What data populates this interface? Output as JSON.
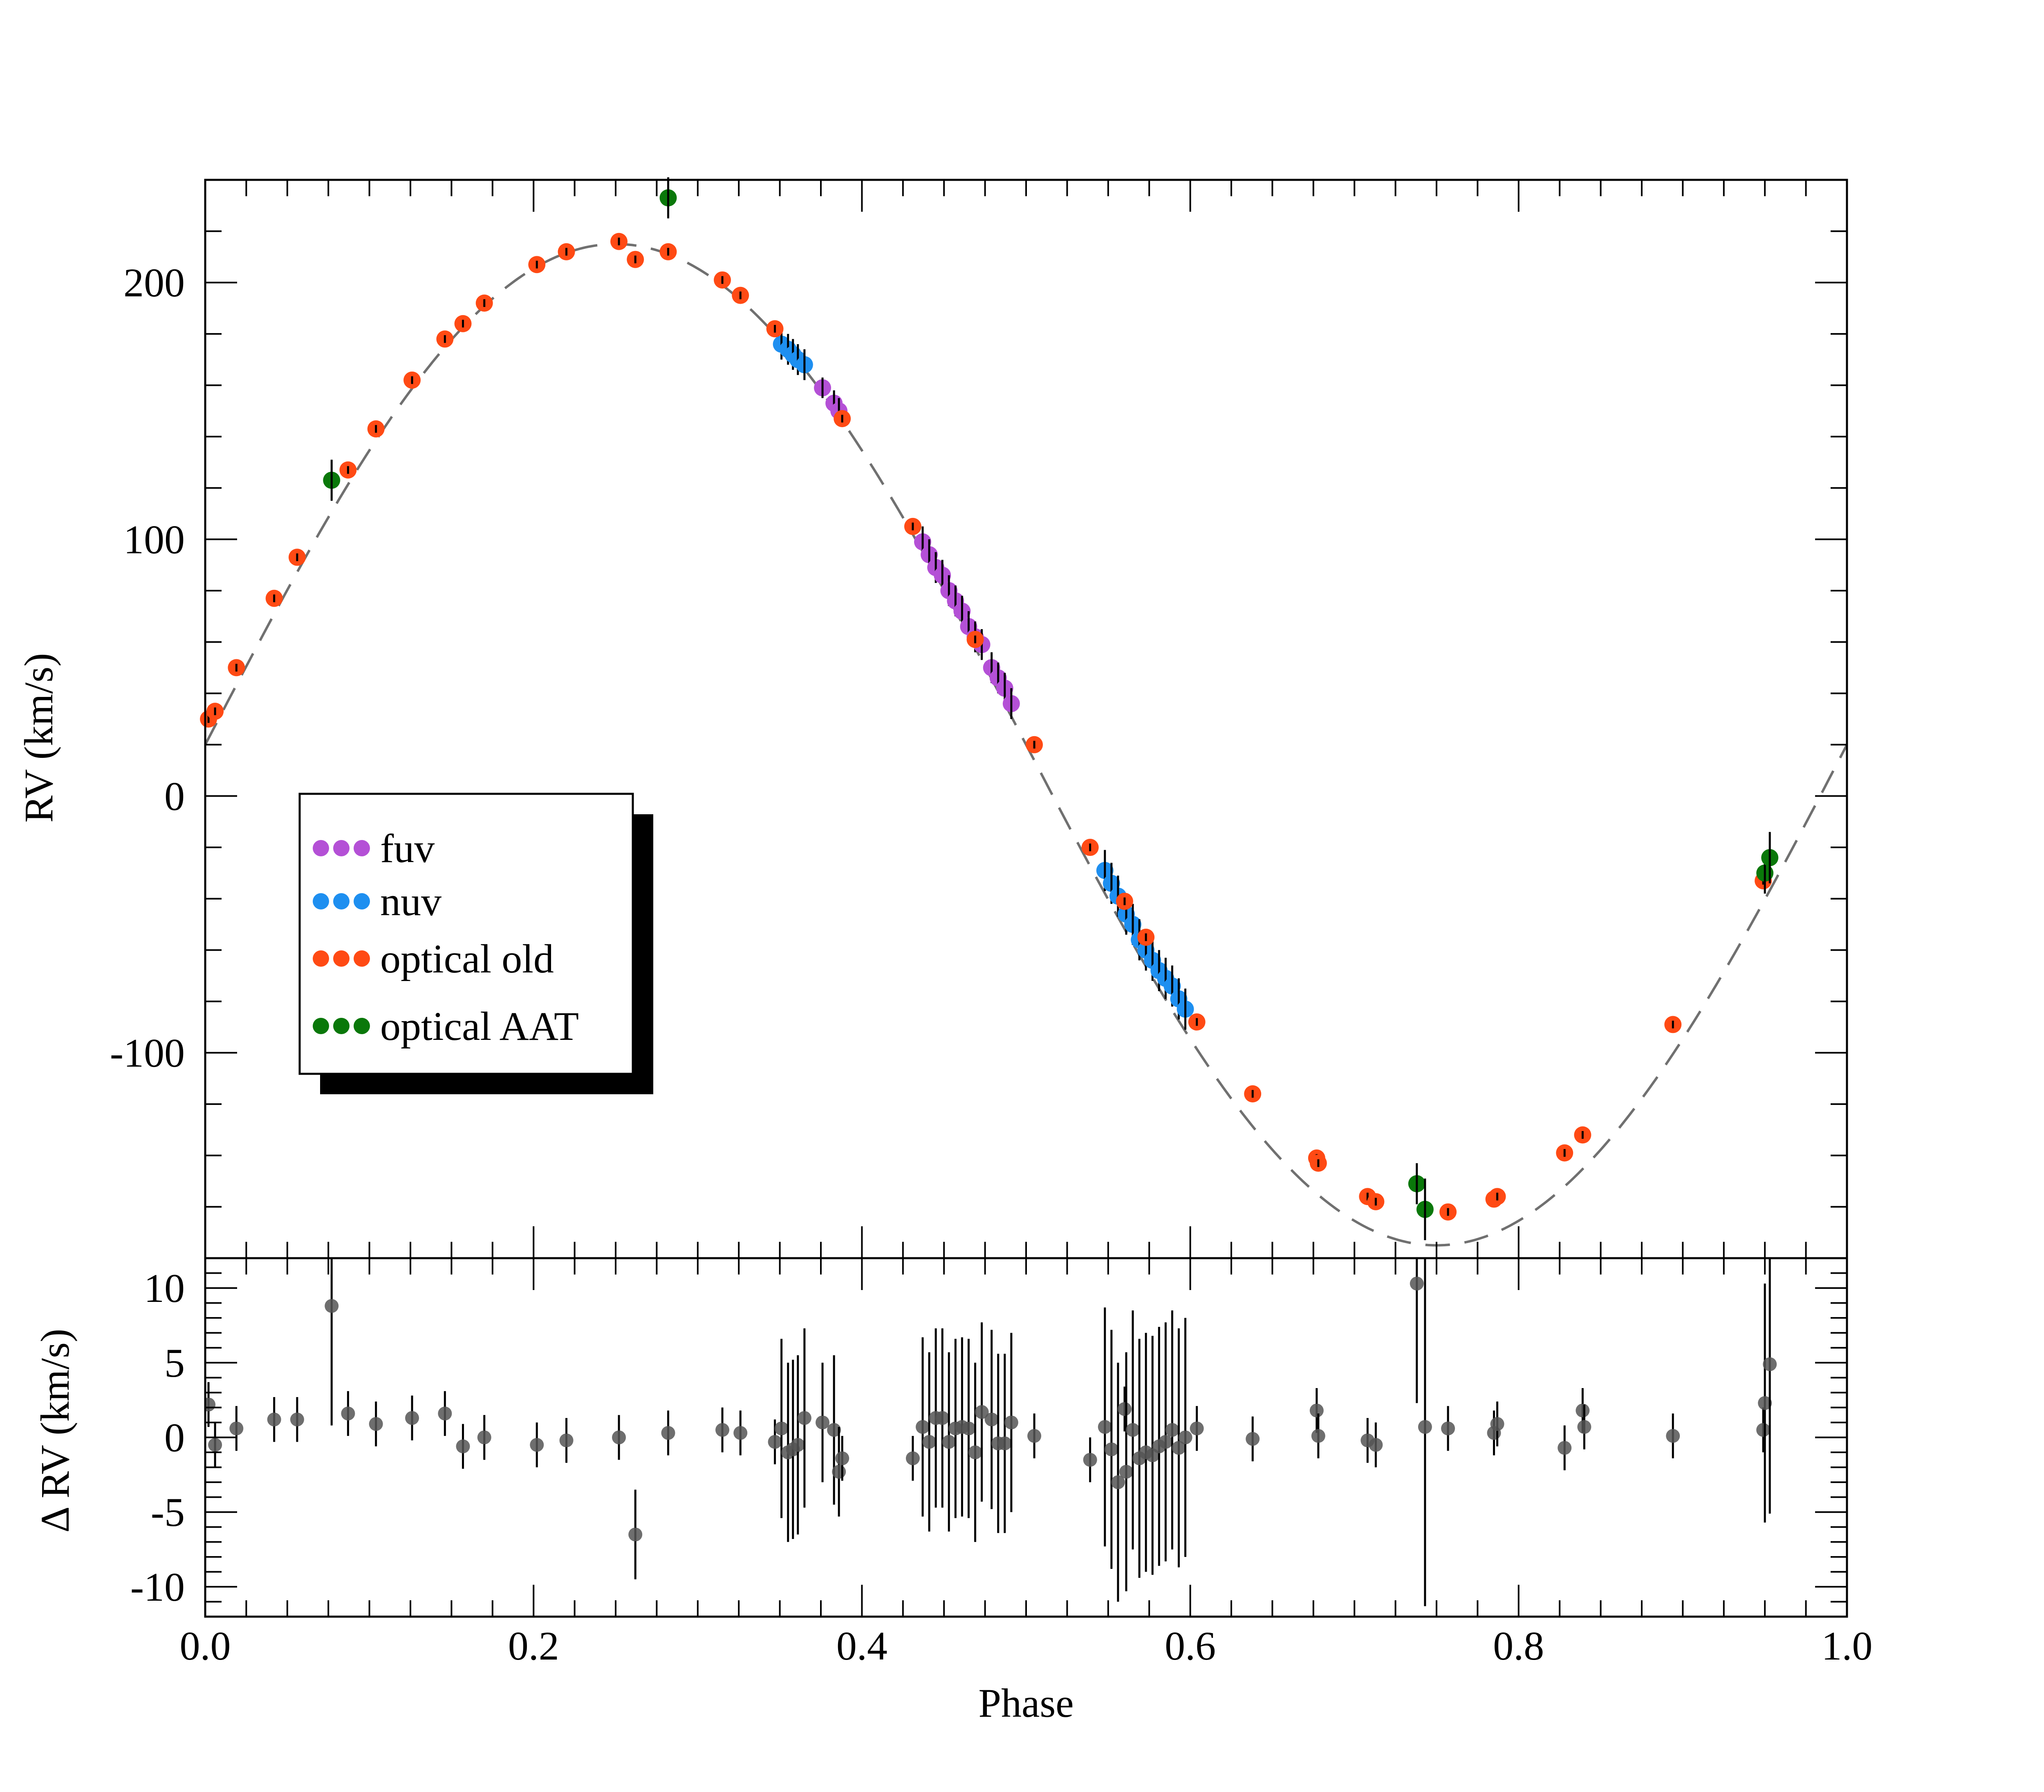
{
  "chart_data": [
    {
      "type": "scatter",
      "title": "",
      "xlabel": "",
      "ylabel": "RV (km/s)",
      "xlim": [
        0.0,
        1.0
      ],
      "ylim": [
        -180,
        240
      ],
      "y_ticks": [
        -100,
        0,
        100,
        200
      ],
      "y_tick_labels": [
        "-100",
        "0",
        "100",
        "200"
      ],
      "grid": false,
      "model": {
        "name": "sine fit",
        "style": "dashed",
        "color": "#707070",
        "gamma": 20,
        "amplitude": 195,
        "phase_of_max": 0.25
      },
      "legend": {
        "placement": "middle-left",
        "entries": [
          {
            "label": "fuv",
            "color": "#b450d6"
          },
          {
            "label": "nuv",
            "color": "#1e8ff0"
          },
          {
            "label": "optical old",
            "color": "#ff4a14"
          },
          {
            "label": "optical AAT",
            "color": "#0a780a"
          }
        ]
      },
      "series": [
        {
          "name": "fuv",
          "color": "#b450d6",
          "x": [
            0.376,
            0.383,
            0.386,
            0.437,
            0.441,
            0.445,
            0.449,
            0.453,
            0.457,
            0.461,
            0.465,
            0.469,
            0.473,
            0.479,
            0.483,
            0.487,
            0.491
          ],
          "y": [
            159,
            153,
            150,
            99,
            94,
            89,
            86,
            80,
            76,
            72,
            66,
            62,
            59,
            50,
            46,
            42,
            36
          ],
          "err": [
            4,
            5,
            5,
            6,
            6,
            6,
            6,
            6,
            6,
            6,
            6,
            6,
            6,
            6,
            6,
            6,
            6
          ]
        },
        {
          "name": "nuv",
          "color": "#1e8ff0",
          "x": [
            0.351,
            0.355,
            0.358,
            0.361,
            0.365,
            0.548,
            0.552,
            0.556,
            0.561,
            0.565,
            0.569,
            0.573,
            0.577,
            0.581,
            0.585,
            0.589,
            0.593,
            0.597
          ],
          "y": [
            176,
            174,
            172,
            170,
            168,
            -29,
            -34,
            -39,
            -46,
            -50,
            -56,
            -60,
            -64,
            -68,
            -71,
            -74,
            -79,
            -83
          ],
          "err": [
            6,
            6,
            6,
            6,
            6,
            8,
            8,
            8,
            8,
            8,
            8,
            8,
            8,
            8,
            8,
            8,
            8,
            8
          ]
        },
        {
          "name": "optical old",
          "color": "#ff4a14",
          "x": [
            0.002,
            0.006,
            0.019,
            0.042,
            0.056,
            0.087,
            0.104,
            0.126,
            0.146,
            0.157,
            0.17,
            0.202,
            0.22,
            0.252,
            0.262,
            0.282,
            0.315,
            0.326,
            0.347,
            0.388,
            0.431,
            0.469,
            0.505,
            0.539,
            0.56,
            0.573,
            0.604,
            0.638,
            0.677,
            0.678,
            0.708,
            0.713,
            0.757,
            0.785,
            0.787,
            0.828,
            0.839,
            0.894,
            0.949
          ],
          "y": [
            30,
            33,
            50,
            77,
            93,
            127,
            143,
            162,
            178,
            184,
            192,
            207,
            212,
            216,
            209,
            212,
            201,
            195,
            182,
            147,
            105,
            61,
            20,
            -20,
            -41,
            -55,
            -88,
            -116,
            -141,
            -143,
            -156,
            -158,
            -162,
            -157,
            -156,
            -139,
            -132,
            -89,
            -33
          ],
          "err": [
            1.5,
            1.5,
            1.5,
            1.5,
            1.5,
            1.5,
            1.5,
            1.5,
            1.5,
            1.5,
            1.5,
            1.5,
            1.5,
            1.5,
            1.5,
            1.5,
            1.5,
            1.5,
            1.5,
            1.5,
            1.5,
            1.5,
            1.5,
            1.5,
            1.5,
            1.5,
            1.5,
            1.5,
            1.5,
            1.5,
            1.5,
            1.5,
            1.5,
            1.5,
            1.5,
            1.5,
            1.5,
            1.5,
            1.5
          ]
        },
        {
          "name": "optical AAT",
          "color": "#0a780a",
          "x": [
            0.077,
            0.282,
            0.738,
            0.743,
            0.95,
            0.953
          ],
          "y": [
            123,
            233,
            -151,
            -161,
            -30,
            -24
          ],
          "err": [
            8,
            8,
            8,
            12,
            8,
            10
          ]
        }
      ]
    },
    {
      "type": "scatter",
      "title": "",
      "xlabel": "Phase",
      "ylabel": "Δ RV (km/s)",
      "xlim": [
        0.0,
        1.0
      ],
      "ylim": [
        -12,
        12
      ],
      "x_ticks": [
        0.0,
        0.2,
        0.4,
        0.6,
        0.8,
        1.0
      ],
      "x_tick_labels": [
        "0.0",
        "0.2",
        "0.4",
        "0.6",
        "0.8",
        "1.0"
      ],
      "y_ticks": [
        -10,
        -5,
        0,
        5,
        10
      ],
      "y_tick_labels": [
        "-10",
        "-5",
        "0",
        "5",
        "10"
      ],
      "grid": false,
      "series": [
        {
          "name": "residuals",
          "color": "#555555",
          "x": [
            0.002,
            0.006,
            0.019,
            0.042,
            0.056,
            0.077,
            0.087,
            0.104,
            0.126,
            0.146,
            0.157,
            0.17,
            0.202,
            0.22,
            0.252,
            0.262,
            0.282,
            0.315,
            0.326,
            0.347,
            0.351,
            0.355,
            0.358,
            0.361,
            0.365,
            0.376,
            0.383,
            0.386,
            0.388,
            0.431,
            0.437,
            0.441,
            0.445,
            0.449,
            0.453,
            0.457,
            0.461,
            0.465,
            0.469,
            0.473,
            0.479,
            0.483,
            0.487,
            0.491,
            0.505,
            0.539,
            0.548,
            0.552,
            0.556,
            0.56,
            0.561,
            0.565,
            0.569,
            0.573,
            0.577,
            0.581,
            0.585,
            0.589,
            0.593,
            0.597,
            0.604,
            0.638,
            0.677,
            0.678,
            0.708,
            0.713,
            0.738,
            0.743,
            0.757,
            0.785,
            0.787,
            0.828,
            0.839,
            0.84,
            0.894,
            0.949,
            0.95,
            0.953
          ],
          "y": [
            2.2,
            -0.5,
            0.6,
            1.2,
            1.2,
            8.8,
            1.6,
            0.9,
            1.3,
            1.6,
            -0.6,
            0.0,
            -0.5,
            -0.2,
            0.0,
            -6.5,
            0.3,
            0.5,
            0.3,
            -0.3,
            0.6,
            -1.0,
            -0.8,
            -0.5,
            1.3,
            1.0,
            0.5,
            -2.3,
            -1.4,
            -1.4,
            0.7,
            -0.3,
            1.3,
            1.3,
            -0.3,
            0.6,
            0.7,
            0.6,
            -1.0,
            1.7,
            1.2,
            -0.4,
            -0.4,
            1.0,
            0.1,
            -1.5,
            0.7,
            -0.8,
            -3.0,
            1.9,
            -2.3,
            0.5,
            -1.4,
            -1.0,
            -1.2,
            -0.6,
            -0.3,
            0.5,
            -0.7,
            0.0,
            0.6,
            -0.1,
            1.8,
            0.1,
            -0.2,
            -0.5,
            10.3,
            0.7,
            0.6,
            0.3,
            0.9,
            -0.7,
            1.8,
            0.7,
            0.1,
            0.5,
            2.3,
            4.9
          ],
          "err": [
            1.5,
            1.5,
            1.5,
            1.5,
            1.5,
            8,
            1.5,
            1.5,
            1.5,
            1.5,
            1.5,
            1.5,
            1.5,
            1.5,
            1.5,
            3,
            1.5,
            1.5,
            1.5,
            1.5,
            6,
            6,
            6,
            6,
            6,
            4,
            5,
            3,
            1.5,
            1.5,
            6,
            6,
            6,
            6,
            6,
            6,
            6,
            6,
            6,
            6,
            6,
            6,
            6,
            6,
            1.5,
            1.5,
            8,
            8,
            8,
            1.5,
            8,
            8,
            8,
            8,
            8,
            8,
            8,
            8,
            8,
            8,
            1.5,
            1.5,
            1.5,
            1.5,
            1.5,
            1.5,
            8,
            12,
            1.5,
            1.5,
            1.5,
            1.5,
            1.5,
            1.5,
            1.5,
            1.5,
            8,
            10
          ]
        }
      ]
    }
  ]
}
